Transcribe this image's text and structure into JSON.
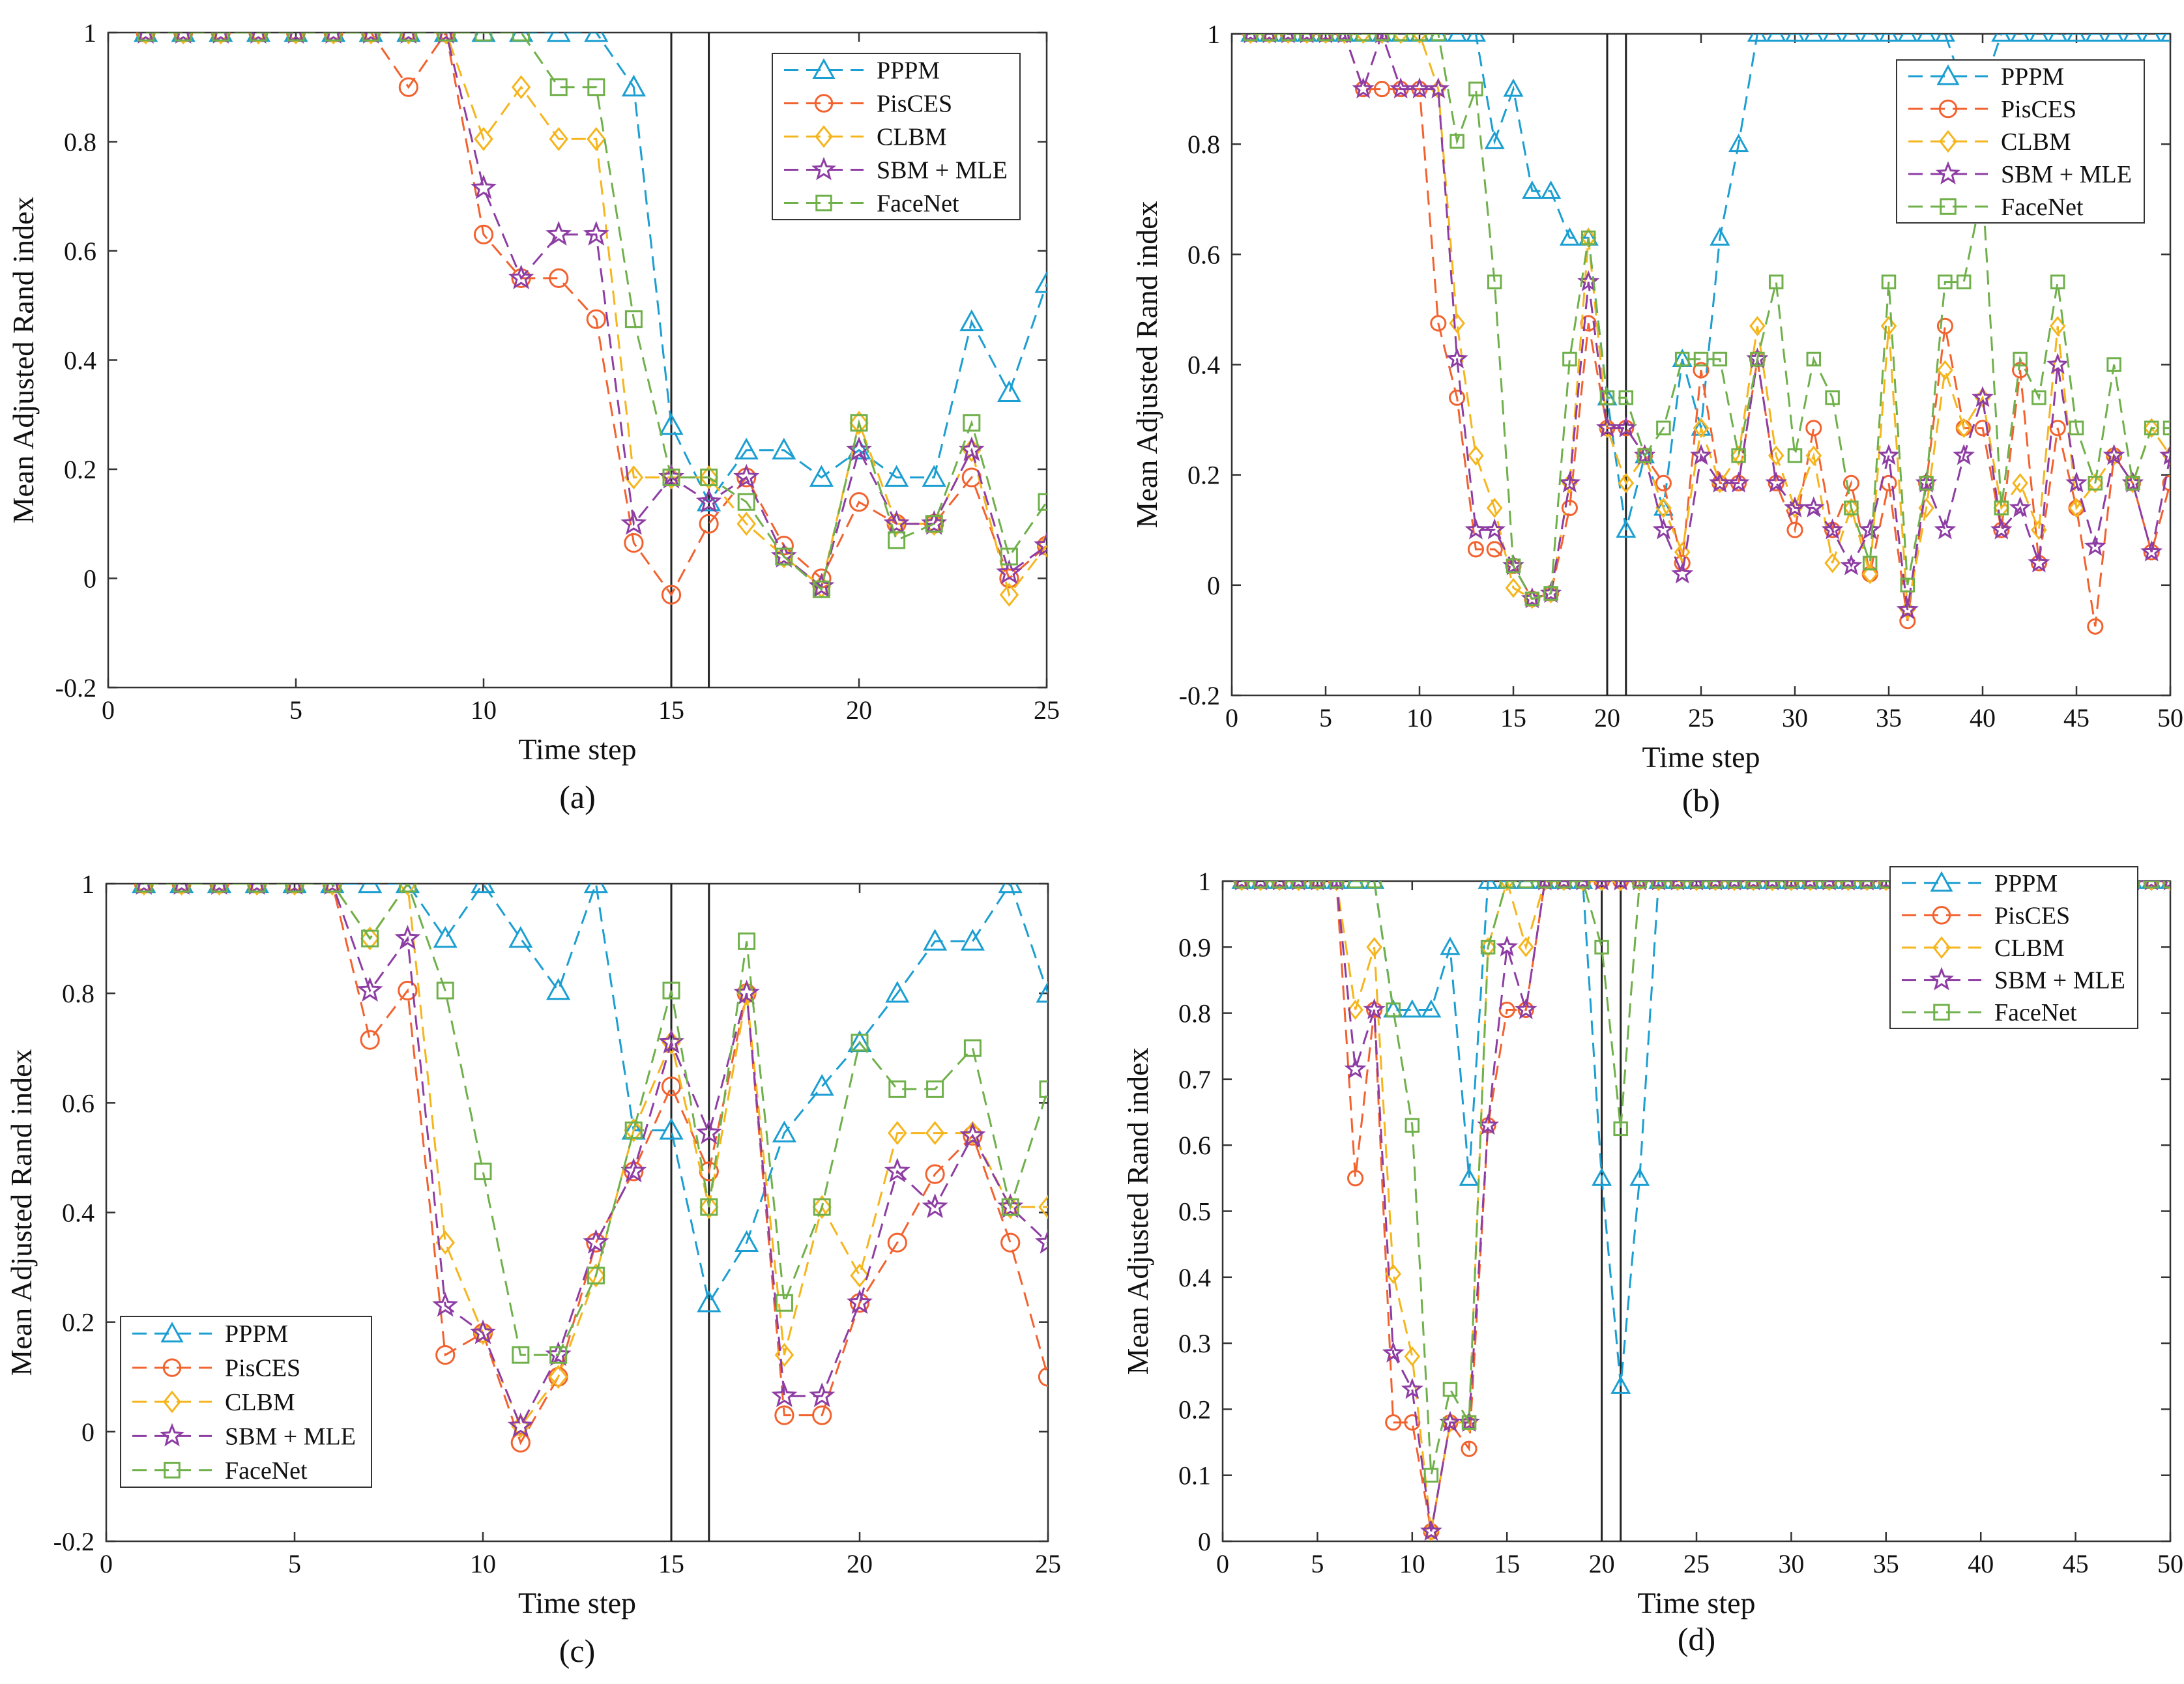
{
  "colors": {
    "PPPM": "#1b9ed1",
    "PisCES": "#f2622f",
    "CLBM": "#f5b51c",
    "SBM + MLE": "#8d3da3",
    "FaceNet": "#6fb04a",
    "axis": "#333333",
    "vline": "#222222"
  },
  "legend_order": [
    "PPPM",
    "PisCES",
    "CLBM",
    "SBM + MLE",
    "FaceNet"
  ],
  "chart_data": [
    {
      "id": "a",
      "type": "line",
      "panel_label": "(a)",
      "xlabel": "Time step",
      "ylabel": "Mean Adjusted Rand index",
      "xlim": [
        0,
        25
      ],
      "ylim": [
        -0.2,
        1
      ],
      "xticks": [
        0,
        5,
        10,
        15,
        20,
        25
      ],
      "yticks": [
        -0.2,
        0,
        0.2,
        0.4,
        0.6,
        0.8,
        1
      ],
      "ytick_labels": [
        "-0.2",
        "0",
        "0.2",
        "0.4",
        "0.6",
        "0.8",
        "1"
      ],
      "vlines": [
        15,
        16
      ],
      "legend_position": "top-right",
      "x": [
        1,
        2,
        3,
        4,
        5,
        6,
        7,
        8,
        9,
        10,
        11,
        12,
        13,
        14,
        15,
        16,
        17,
        18,
        19,
        20,
        21,
        22,
        23,
        24,
        25
      ],
      "series": [
        {
          "name": "PPPM",
          "marker": "triangle",
          "values": [
            1,
            1,
            1,
            1,
            1,
            1,
            1,
            1,
            1,
            1,
            1,
            1,
            1,
            0.9,
            0.28,
            0.14,
            0.235,
            0.235,
            0.185,
            0.235,
            0.185,
            0.185,
            0.47,
            0.34,
            0.54
          ]
        },
        {
          "name": "PisCES",
          "marker": "circle",
          "values": [
            1,
            1,
            1,
            1,
            1,
            1,
            1,
            0.9,
            1,
            0.63,
            0.55,
            0.55,
            0.475,
            0.065,
            -0.03,
            0.1,
            0.185,
            0.06,
            0,
            0.14,
            0.1,
            0.1,
            0.185,
            0,
            0.06
          ]
        },
        {
          "name": "CLBM",
          "marker": "diamond",
          "values": [
            1,
            1,
            1,
            1,
            1,
            1,
            1,
            1,
            1,
            0.805,
            0.9,
            0.805,
            0.805,
            0.185,
            0.185,
            0.185,
            0.1,
            0.04,
            -0.015,
            0.285,
            0.1,
            0.1,
            0.235,
            -0.03,
            0.06
          ]
        },
        {
          "name": "SBM + MLE",
          "marker": "star",
          "values": [
            1,
            1,
            1,
            1,
            1,
            1,
            1,
            1,
            1,
            0.715,
            0.55,
            0.63,
            0.63,
            0.1,
            0.185,
            0.14,
            0.185,
            0.04,
            -0.015,
            0.235,
            0.1,
            0.1,
            0.235,
            0.01,
            0.06
          ]
        },
        {
          "name": "FaceNet",
          "marker": "square",
          "values": [
            1,
            1,
            1,
            1,
            1,
            1,
            1,
            1,
            1,
            1,
            1,
            0.9,
            0.9,
            0.475,
            0.185,
            0.185,
            0.14,
            0.04,
            -0.02,
            0.285,
            0.07,
            0.1,
            0.285,
            0.04,
            0.14
          ]
        }
      ]
    },
    {
      "id": "b",
      "type": "line",
      "panel_label": "(b)",
      "xlabel": "Time step",
      "ylabel": "Mean Adjusted Rand index",
      "xlim": [
        0,
        50
      ],
      "ylim": [
        -0.2,
        1
      ],
      "xticks": [
        0,
        5,
        10,
        15,
        20,
        25,
        30,
        35,
        40,
        45,
        50
      ],
      "yticks": [
        -0.2,
        0,
        0.2,
        0.4,
        0.6,
        0.8,
        1
      ],
      "ytick_labels": [
        "-0.2",
        "0",
        "0.2",
        "0.4",
        "0.6",
        "0.8",
        "1"
      ],
      "vlines": [
        20,
        21
      ],
      "legend_position": "top-right",
      "x": [
        1,
        2,
        3,
        4,
        5,
        6,
        7,
        8,
        9,
        10,
        11,
        12,
        13,
        14,
        15,
        16,
        17,
        18,
        19,
        20,
        21,
        22,
        23,
        24,
        25,
        26,
        27,
        28,
        29,
        30,
        31,
        32,
        33,
        34,
        35,
        36,
        37,
        38,
        39,
        40,
        41,
        42,
        43,
        44,
        45,
        46,
        47,
        48,
        49,
        50
      ],
      "series": [
        {
          "name": "PPPM",
          "marker": "triangle",
          "values": [
            1,
            1,
            1,
            1,
            1,
            1,
            1,
            1,
            1,
            1,
            1,
            1,
            1,
            0.805,
            0.9,
            0.715,
            0.715,
            0.63,
            0.63,
            0.34,
            0.1,
            0.235,
            0.14,
            0.41,
            0.285,
            0.63,
            0.8,
            1,
            1,
            1,
            1,
            1,
            1,
            1,
            1,
            1,
            1,
            1,
            0.9,
            0.9,
            1,
            1,
            1,
            1,
            1,
            1,
            1,
            1,
            1,
            1
          ]
        },
        {
          "name": "PisCES",
          "marker": "circle",
          "values": [
            1,
            1,
            1,
            1,
            1,
            1,
            0.9,
            0.9,
            0.9,
            0.9,
            0.475,
            0.34,
            0.065,
            0.065,
            0.035,
            -0.025,
            -0.015,
            0.14,
            0.475,
            0.285,
            0.285,
            0.235,
            0.185,
            0.04,
            0.39,
            0.185,
            0.185,
            0.41,
            0.185,
            0.1,
            0.285,
            0.1,
            0.185,
            0.02,
            0.185,
            -0.065,
            0.185,
            0.47,
            0.285,
            0.285,
            0.1,
            0.39,
            0.04,
            0.285,
            0.14,
            -0.075,
            0.235,
            0.185,
            0.06,
            0.185
          ]
        },
        {
          "name": "CLBM",
          "marker": "diamond",
          "values": [
            1,
            1,
            1,
            1,
            1,
            1,
            1,
            1,
            1,
            1,
            0.9,
            0.475,
            0.235,
            0.14,
            -0.005,
            -0.025,
            -0.015,
            0.185,
            0.63,
            0.285,
            0.185,
            0.235,
            0.14,
            0.06,
            0.285,
            0.185,
            0.235,
            0.47,
            0.235,
            0.14,
            0.235,
            0.04,
            0.14,
            0.02,
            0.47,
            -0.045,
            0.14,
            0.39,
            0.285,
            0.34,
            0.14,
            0.185,
            0.1,
            0.47,
            0.14,
            0.185,
            0.235,
            0.185,
            0.285,
            0.235
          ]
        },
        {
          "name": "SBM + MLE",
          "marker": "star",
          "values": [
            1,
            1,
            1,
            1,
            1,
            1,
            0.9,
            1,
            0.9,
            0.9,
            0.9,
            0.41,
            0.1,
            0.1,
            0.035,
            -0.025,
            -0.015,
            0.185,
            0.55,
            0.285,
            0.285,
            0.235,
            0.1,
            0.02,
            0.235,
            0.185,
            0.185,
            0.41,
            0.185,
            0.14,
            0.14,
            0.1,
            0.035,
            0.1,
            0.235,
            -0.045,
            0.185,
            0.1,
            0.235,
            0.34,
            0.1,
            0.14,
            0.04,
            0.4,
            0.185,
            0.07,
            0.235,
            0.185,
            0.06,
            0.235
          ]
        },
        {
          "name": "FaceNet",
          "marker": "square",
          "values": [
            1,
            1,
            1,
            1,
            1,
            1,
            1,
            1,
            1,
            1,
            1,
            0.805,
            0.9,
            0.55,
            0.035,
            -0.025,
            -0.015,
            0.41,
            0.63,
            0.34,
            0.34,
            0.235,
            0.285,
            0.41,
            0.41,
            0.41,
            0.235,
            0.41,
            0.55,
            0.235,
            0.41,
            0.34,
            0.14,
            0.04,
            0.55,
            0,
            0.185,
            0.55,
            0.55,
            0.72,
            0.14,
            0.41,
            0.34,
            0.55,
            0.285,
            0.185,
            0.4,
            0.185,
            0.285,
            0.285
          ]
        }
      ]
    },
    {
      "id": "c",
      "type": "line",
      "panel_label": "(c)",
      "xlabel": "Time step",
      "ylabel": "Mean Adjusted Rand index",
      "xlim": [
        0,
        25
      ],
      "ylim": [
        -0.2,
        1
      ],
      "xticks": [
        0,
        5,
        10,
        15,
        20,
        25
      ],
      "yticks": [
        -0.2,
        0,
        0.2,
        0.4,
        0.6,
        0.8,
        1
      ],
      "ytick_labels": [
        "-0.2",
        "0",
        "0.2",
        "0.4",
        "0.6",
        "0.8",
        "1"
      ],
      "vlines": [
        15,
        16
      ],
      "legend_position": "bottom-left",
      "x": [
        1,
        2,
        3,
        4,
        5,
        6,
        7,
        8,
        9,
        10,
        11,
        12,
        13,
        14,
        15,
        16,
        17,
        18,
        19,
        20,
        21,
        22,
        23,
        24,
        25
      ],
      "series": [
        {
          "name": "PPPM",
          "marker": "triangle",
          "values": [
            1,
            1,
            1,
            1,
            1,
            1,
            1,
            1,
            0.9,
            1,
            0.9,
            0.805,
            1,
            0.55,
            0.55,
            0.235,
            0.345,
            0.545,
            0.63,
            0.71,
            0.8,
            0.895,
            0.895,
            1,
            0.8
          ]
        },
        {
          "name": "PisCES",
          "marker": "circle",
          "values": [
            1,
            1,
            1,
            1,
            1,
            1,
            0.715,
            0.805,
            0.14,
            0.18,
            -0.02,
            0.1,
            0.345,
            0.475,
            0.63,
            0.475,
            0.8,
            0.03,
            0.03,
            0.235,
            0.345,
            0.47,
            0.54,
            0.345,
            0.1
          ]
        },
        {
          "name": "CLBM",
          "marker": "diamond",
          "values": [
            1,
            1,
            1,
            1,
            1,
            1,
            0.9,
            1,
            0.345,
            0.18,
            0.01,
            0.1,
            0.285,
            0.55,
            0.71,
            0.41,
            0.8,
            0.14,
            0.41,
            0.285,
            0.545,
            0.545,
            0.545,
            0.41,
            0.41
          ]
        },
        {
          "name": "SBM + MLE",
          "marker": "star",
          "values": [
            1,
            1,
            1,
            1,
            1,
            1,
            0.805,
            0.9,
            0.23,
            0.18,
            0.01,
            0.14,
            0.345,
            0.475,
            0.71,
            0.545,
            0.8,
            0.065,
            0.065,
            0.235,
            0.475,
            0.41,
            0.54,
            0.41,
            0.345
          ]
        },
        {
          "name": "FaceNet",
          "marker": "square",
          "values": [
            1,
            1,
            1,
            1,
            1,
            1,
            0.9,
            1,
            0.805,
            0.475,
            0.14,
            0.14,
            0.285,
            0.55,
            0.805,
            0.41,
            0.895,
            0.235,
            0.41,
            0.71,
            0.625,
            0.625,
            0.7,
            0.41,
            0.625
          ]
        }
      ]
    },
    {
      "id": "d",
      "type": "line",
      "panel_label": "(d)",
      "xlabel": "Time step",
      "ylabel": "Mean Adjusted Rand index",
      "xlim": [
        0,
        50
      ],
      "ylim": [
        0,
        1
      ],
      "xticks": [
        0,
        5,
        10,
        15,
        20,
        25,
        30,
        35,
        40,
        45,
        50
      ],
      "yticks": [
        0,
        0.1,
        0.2,
        0.3,
        0.4,
        0.5,
        0.6,
        0.7,
        0.8,
        0.9,
        1
      ],
      "ytick_labels": [
        "0",
        "0.1",
        "0.2",
        "0.3",
        "0.4",
        "0.5",
        "0.6",
        "0.7",
        "0.8",
        "0.9",
        "1"
      ],
      "vlines": [
        20,
        21
      ],
      "legend_position": "top-right",
      "x": [
        1,
        2,
        3,
        4,
        5,
        6,
        7,
        8,
        9,
        10,
        11,
        12,
        13,
        14,
        15,
        16,
        17,
        18,
        19,
        20,
        21,
        22,
        23,
        24,
        25,
        26,
        27,
        28,
        29,
        30,
        31,
        32,
        33,
        34,
        35,
        36,
        37,
        38,
        39,
        40,
        41,
        42,
        43,
        44,
        45,
        46,
        47,
        48,
        49,
        50
      ],
      "series": [
        {
          "name": "PPPM",
          "marker": "triangle",
          "values": [
            1,
            1,
            1,
            1,
            1,
            1,
            1,
            1,
            0.805,
            0.805,
            0.805,
            0.9,
            0.55,
            1,
            1,
            1,
            1,
            1,
            1,
            0.55,
            0.235,
            0.55,
            1,
            1,
            1,
            1,
            1,
            1,
            1,
            1,
            1,
            1,
            1,
            1,
            1,
            1,
            1,
            1,
            1,
            1,
            1,
            1,
            1,
            1,
            1,
            1,
            1,
            1,
            1,
            1
          ]
        },
        {
          "name": "PisCES",
          "marker": "circle",
          "values": [
            1,
            1,
            1,
            1,
            1,
            1,
            0.55,
            0.805,
            0.18,
            0.18,
            0.015,
            0.18,
            0.14,
            0.63,
            0.805,
            0.805,
            1,
            1,
            1,
            1,
            1,
            1,
            1,
            1,
            1,
            1,
            1,
            1,
            1,
            1,
            1,
            1,
            1,
            1,
            1,
            1,
            1,
            1,
            1,
            1,
            1,
            1,
            1,
            1,
            1,
            1,
            1,
            1,
            1,
            1
          ]
        },
        {
          "name": "CLBM",
          "marker": "diamond",
          "values": [
            1,
            1,
            1,
            1,
            1,
            1,
            0.805,
            0.9,
            0.405,
            0.28,
            0.015,
            0.18,
            0.18,
            0.9,
            1,
            0.9,
            1,
            1,
            1,
            1,
            1,
            1,
            1,
            1,
            1,
            1,
            1,
            1,
            1,
            1,
            1,
            1,
            1,
            1,
            1,
            1,
            1,
            1,
            1,
            1,
            1,
            1,
            1,
            1,
            1,
            1,
            1,
            1,
            1,
            1
          ]
        },
        {
          "name": "SBM + MLE",
          "marker": "star",
          "values": [
            1,
            1,
            1,
            1,
            1,
            1,
            0.715,
            0.805,
            0.285,
            0.23,
            0.015,
            0.18,
            0.18,
            0.63,
            0.9,
            0.805,
            1,
            1,
            1,
            1,
            1,
            1,
            1,
            1,
            1,
            1,
            1,
            1,
            1,
            1,
            1,
            1,
            1,
            1,
            1,
            1,
            1,
            1,
            1,
            1,
            1,
            1,
            1,
            1,
            1,
            1,
            1,
            1,
            1,
            1
          ]
        },
        {
          "name": "FaceNet",
          "marker": "square",
          "values": [
            1,
            1,
            1,
            1,
            1,
            1,
            1,
            1,
            0.805,
            0.63,
            0.1,
            0.23,
            0.18,
            0.9,
            1,
            1,
            1,
            1,
            1,
            0.9,
            0.625,
            1,
            1,
            1,
            1,
            1,
            1,
            1,
            1,
            1,
            1,
            1,
            1,
            1,
            1,
            1,
            1,
            1,
            1,
            1,
            1,
            1,
            1,
            1,
            1,
            1,
            1,
            1,
            1,
            1
          ]
        }
      ]
    }
  ]
}
